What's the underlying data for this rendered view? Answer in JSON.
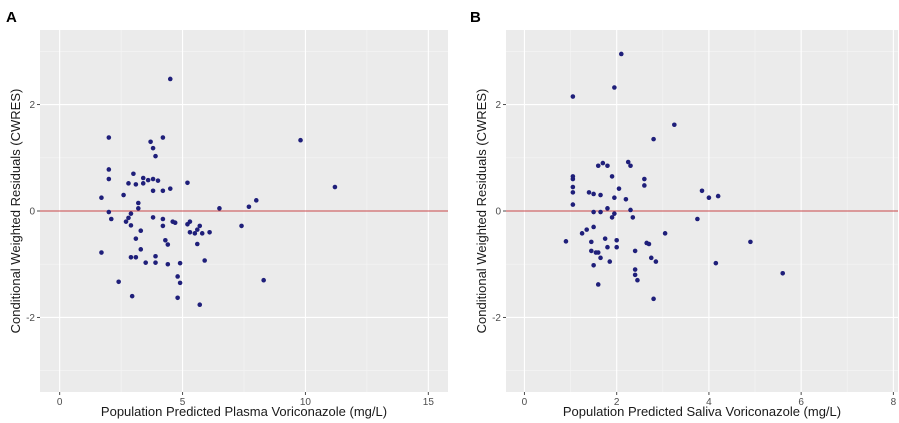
{
  "figure": {
    "panels": [
      {
        "tag": "A",
        "xlabel": "Population Predicted Plasma Voriconazole (mg/L)",
        "ylabel": "Conditional Weighted Residuals (CWRES)"
      },
      {
        "tag": "B",
        "xlabel": "Population Predicted Saliva Voriconazole (mg/L)",
        "ylabel": "Conditional Weighted Residuals (CWRES)"
      }
    ]
  },
  "colors": {
    "point": "#1f1f7a",
    "reference_line": "#c8474a",
    "panel_background": "#ebebeb"
  },
  "chart_data": [
    {
      "type": "scatter",
      "panel": "A",
      "xlabel": "Population Predicted Plasma Voriconazole (mg/L)",
      "ylabel": "Conditional Weighted Residuals (CWRES)",
      "xlim": [
        -0.8,
        15.8
      ],
      "ylim": [
        -3.4,
        3.4
      ],
      "xticks": [
        0,
        5,
        10,
        15
      ],
      "yticks": [
        -2,
        0,
        2
      ],
      "xticklabels": [
        "0",
        "5",
        "10",
        "15"
      ],
      "yticklabels": [
        "-2",
        "0",
        "2"
      ],
      "reference_line_y": 0,
      "grid": true,
      "points": [
        [
          1.7,
          0.25
        ],
        [
          1.7,
          -0.78
        ],
        [
          2.0,
          1.38
        ],
        [
          2.0,
          0.78
        ],
        [
          2.0,
          0.6
        ],
        [
          2.0,
          -0.02
        ],
        [
          2.1,
          -0.15
        ],
        [
          2.4,
          -1.33
        ],
        [
          2.6,
          0.3
        ],
        [
          2.7,
          -0.2
        ],
        [
          2.8,
          -0.13
        ],
        [
          2.8,
          0.52
        ],
        [
          2.9,
          -0.05
        ],
        [
          2.9,
          -0.27
        ],
        [
          2.9,
          -0.87
        ],
        [
          2.95,
          -1.6
        ],
        [
          3.0,
          0.7
        ],
        [
          3.1,
          0.5
        ],
        [
          3.1,
          -0.52
        ],
        [
          3.1,
          -0.87
        ],
        [
          3.2,
          0.15
        ],
        [
          3.2,
          0.05
        ],
        [
          3.3,
          -0.37
        ],
        [
          3.3,
          -0.72
        ],
        [
          3.4,
          0.52
        ],
        [
          3.4,
          0.62
        ],
        [
          3.5,
          -0.97
        ],
        [
          3.6,
          0.58
        ],
        [
          3.7,
          1.3
        ],
        [
          3.8,
          1.18
        ],
        [
          3.8,
          0.6
        ],
        [
          3.8,
          0.38
        ],
        [
          3.8,
          -0.12
        ],
        [
          3.9,
          1.03
        ],
        [
          3.9,
          -0.85
        ],
        [
          3.9,
          -0.97
        ],
        [
          4.0,
          0.57
        ],
        [
          4.2,
          1.38
        ],
        [
          4.2,
          0.38
        ],
        [
          4.2,
          -0.15
        ],
        [
          4.2,
          -0.28
        ],
        [
          4.3,
          -0.55
        ],
        [
          4.4,
          -0.63
        ],
        [
          4.4,
          -1.0
        ],
        [
          4.5,
          2.48
        ],
        [
          4.5,
          0.42
        ],
        [
          4.6,
          -0.2
        ],
        [
          4.7,
          -0.22
        ],
        [
          4.8,
          -1.23
        ],
        [
          4.8,
          -1.63
        ],
        [
          4.9,
          -0.98
        ],
        [
          4.9,
          -1.35
        ],
        [
          5.2,
          0.53
        ],
        [
          5.2,
          -0.25
        ],
        [
          5.3,
          -0.2
        ],
        [
          5.3,
          -0.4
        ],
        [
          5.5,
          -0.42
        ],
        [
          5.6,
          -0.35
        ],
        [
          5.6,
          -0.62
        ],
        [
          5.7,
          -0.28
        ],
        [
          5.7,
          -1.76
        ],
        [
          5.8,
          -0.42
        ],
        [
          5.9,
          -0.93
        ],
        [
          6.1,
          -0.4
        ],
        [
          6.5,
          0.05
        ],
        [
          7.4,
          -0.28
        ],
        [
          7.7,
          0.08
        ],
        [
          8.0,
          0.2
        ],
        [
          8.3,
          -1.3
        ],
        [
          9.8,
          1.33
        ],
        [
          11.2,
          0.45
        ]
      ]
    },
    {
      "type": "scatter",
      "panel": "B",
      "xlabel": "Population Predicted Saliva Voriconazole (mg/L)",
      "ylabel": "Conditional Weighted Residuals (CWRES)",
      "xlim": [
        -0.4,
        8.1
      ],
      "ylim": [
        -3.4,
        3.4
      ],
      "xticks": [
        0,
        2,
        4,
        6,
        8
      ],
      "yticks": [
        -2,
        0,
        2
      ],
      "xticklabels": [
        "0",
        "2",
        "4",
        "6",
        "8"
      ],
      "yticklabels": [
        "-2",
        "0",
        "2"
      ],
      "reference_line_y": 0,
      "grid": true,
      "points": [
        [
          0.9,
          -0.57
        ],
        [
          1.05,
          2.15
        ],
        [
          1.05,
          0.65
        ],
        [
          1.05,
          0.6
        ],
        [
          1.05,
          0.45
        ],
        [
          1.05,
          0.35
        ],
        [
          1.05,
          0.12
        ],
        [
          1.25,
          -0.42
        ],
        [
          1.35,
          -0.35
        ],
        [
          1.4,
          0.35
        ],
        [
          1.45,
          -0.58
        ],
        [
          1.45,
          -0.75
        ],
        [
          1.5,
          0.32
        ],
        [
          1.5,
          -0.02
        ],
        [
          1.5,
          -0.3
        ],
        [
          1.5,
          -1.02
        ],
        [
          1.55,
          -0.78
        ],
        [
          1.6,
          0.85
        ],
        [
          1.6,
          -0.78
        ],
        [
          1.6,
          -1.38
        ],
        [
          1.65,
          0.3
        ],
        [
          1.65,
          -0.02
        ],
        [
          1.65,
          -0.88
        ],
        [
          1.7,
          0.9
        ],
        [
          1.75,
          -0.52
        ],
        [
          1.8,
          0.85
        ],
        [
          1.8,
          0.05
        ],
        [
          1.8,
          -0.68
        ],
        [
          1.85,
          -0.95
        ],
        [
          1.9,
          0.65
        ],
        [
          1.9,
          -0.12
        ],
        [
          1.95,
          2.32
        ],
        [
          1.95,
          0.25
        ],
        [
          1.95,
          -0.05
        ],
        [
          2.0,
          -0.55
        ],
        [
          2.0,
          -0.68
        ],
        [
          2.05,
          0.42
        ],
        [
          2.1,
          2.95
        ],
        [
          2.2,
          0.22
        ],
        [
          2.25,
          0.92
        ],
        [
          2.3,
          0.85
        ],
        [
          2.3,
          0.02
        ],
        [
          2.35,
          -0.12
        ],
        [
          2.4,
          -0.75
        ],
        [
          2.4,
          -1.1
        ],
        [
          2.4,
          -1.2
        ],
        [
          2.45,
          -1.3
        ],
        [
          2.6,
          0.6
        ],
        [
          2.6,
          0.48
        ],
        [
          2.65,
          -0.6
        ],
        [
          2.7,
          -0.62
        ],
        [
          2.75,
          -0.88
        ],
        [
          2.8,
          1.35
        ],
        [
          2.8,
          -1.65
        ],
        [
          2.85,
          -0.95
        ],
        [
          3.05,
          -0.42
        ],
        [
          3.25,
          1.62
        ],
        [
          3.75,
          -0.15
        ],
        [
          3.85,
          0.38
        ],
        [
          4.0,
          0.25
        ],
        [
          4.15,
          -0.98
        ],
        [
          4.2,
          0.28
        ],
        [
          4.9,
          -0.58
        ],
        [
          5.6,
          -1.17
        ]
      ]
    }
  ]
}
